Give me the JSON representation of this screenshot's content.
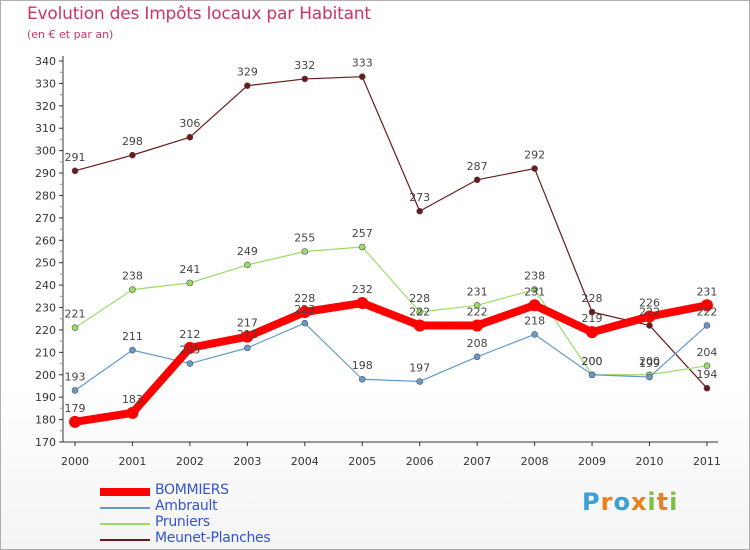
{
  "header": {
    "title": "Evolution des Impôts locaux par Habitant",
    "subtitle": "(en € et par an)"
  },
  "logo": {
    "letters": [
      "P",
      "r",
      "o",
      "x",
      "i",
      "t",
      "i"
    ],
    "colors": [
      "#3aa0d8",
      "#e8821e",
      "#3aa0d8",
      "#e8821e",
      "#7cc040",
      "#e8821e",
      "#7cc040"
    ]
  },
  "chart_data": {
    "type": "line",
    "title": "Evolution des Impôts locaux par Habitant",
    "subtitle": "(en € et par an)",
    "xlabel": "",
    "ylabel": "",
    "ylim": [
      170,
      340
    ],
    "yticks": [
      170,
      180,
      190,
      200,
      210,
      220,
      230,
      240,
      250,
      260,
      270,
      280,
      290,
      300,
      310,
      320,
      330,
      340
    ],
    "categories": [
      "2000",
      "2001",
      "2002",
      "2003",
      "2004",
      "2005",
      "2006",
      "2007",
      "2008",
      "2009",
      "2010",
      "2011"
    ],
    "grid": false,
    "legend_position": "bottom-left",
    "series": [
      {
        "name": "Meunet-Planches",
        "color": "#6b1a1a",
        "values": [
          291,
          298,
          306,
          329,
          332,
          333,
          273,
          287,
          292,
          228,
          222,
          194
        ],
        "labels": [
          "291",
          "298",
          "306",
          "329",
          "332",
          "333",
          "273",
          "287",
          "292",
          "228",
          "222",
          "194"
        ]
      },
      {
        "name": "Pruniers",
        "color": "#99dd66",
        "values": [
          221,
          238,
          241,
          249,
          255,
          257,
          228,
          231,
          238,
          200,
          200,
          204
        ],
        "labels": [
          "221",
          "238",
          "241",
          "249",
          "255",
          "257",
          "228",
          "231",
          "238",
          "200",
          "200",
          "204"
        ]
      },
      {
        "name": "Ambrault",
        "color": "#6699cc",
        "values": [
          193,
          211,
          205,
          212,
          223,
          198,
          197,
          208,
          218,
          200,
          199,
          222
        ],
        "labels": [
          "193",
          "211",
          "205",
          "212",
          "223",
          "198",
          "197",
          "208",
          "218",
          "200",
          "199",
          "222"
        ]
      },
      {
        "name": "BOMMIERS",
        "color": "#ff0000",
        "values": [
          179,
          183,
          212,
          217,
          228,
          232,
          222,
          222,
          231,
          219,
          226,
          231
        ],
        "labels": [
          "179",
          "183",
          "212",
          "217",
          "228",
          "232",
          "222",
          "222",
          "231",
          "219",
          "226",
          "231"
        ]
      }
    ],
    "legend": [
      "BOMMIERS",
      "Ambrault",
      "Pruniers",
      "Meunet-Planches"
    ]
  }
}
